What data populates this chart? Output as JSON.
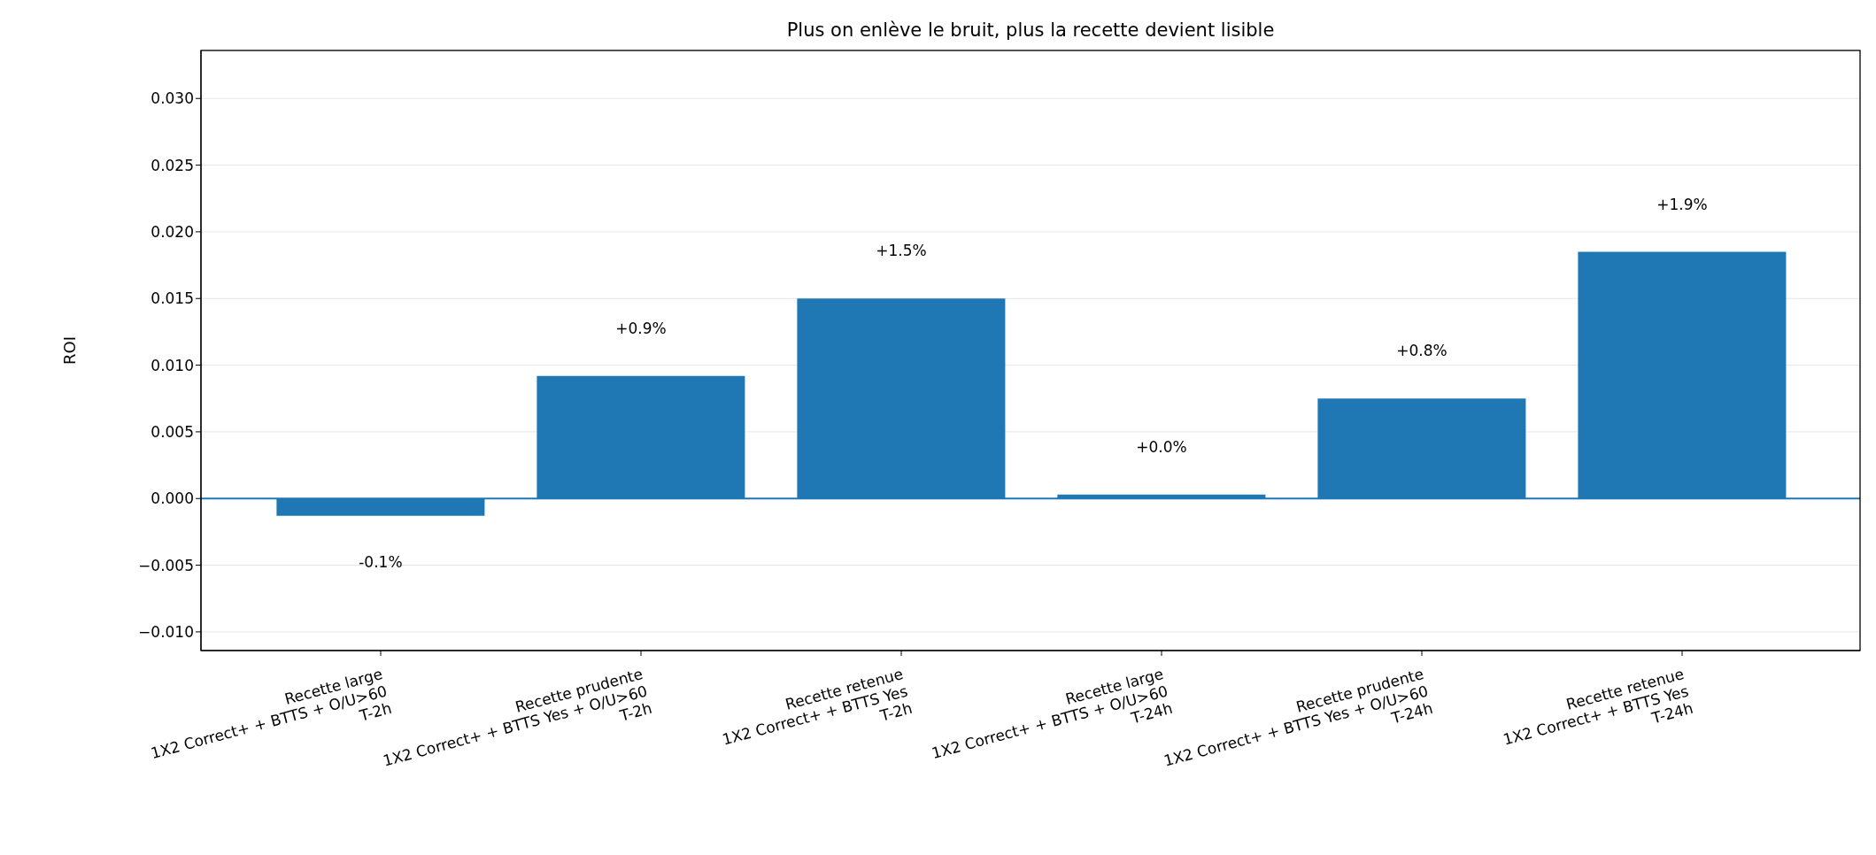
{
  "chart_data": {
    "type": "bar",
    "title": "Plus on enlève le bruit, plus la recette devient lisible",
    "ylabel": "ROI",
    "categories": [
      "Recette large\n1X2 Correct+ + BTTS + O/U>60\nT-2h",
      "Recette prudente\n1X2 Correct+ + BTTS Yes + O/U>60\nT-2h",
      "Recette retenue\n1X2 Correct+ + BTTS Yes\nT-2h",
      "Recette large\n1X2 Correct+ + BTTS + O/U>60\nT-24h",
      "Recette prudente\n1X2 Correct+ + BTTS Yes + O/U>60\nT-24h",
      "Recette retenue\n1X2 Correct+ + BTTS Yes\nT-24h"
    ],
    "values": [
      -0.0013,
      0.0092,
      0.015,
      0.0003,
      0.0075,
      0.0185
    ],
    "value_labels": [
      "-0.1%",
      "+0.9%",
      "+1.5%",
      "+0.0%",
      "+0.8%",
      "+1.9%"
    ],
    "color": "#1f77b4",
    "ylim": [
      -0.0114,
      0.0336
    ],
    "yticks": [
      {
        "value": -0.01,
        "label": "−0.010"
      },
      {
        "value": -0.005,
        "label": "−0.005"
      },
      {
        "value": 0,
        "label": "0.000"
      },
      {
        "value": 0.005,
        "label": "0.005"
      },
      {
        "value": 0.01,
        "label": "0.010"
      },
      {
        "value": 0.015,
        "label": "0.015"
      },
      {
        "value": 0.02,
        "label": "0.020"
      },
      {
        "value": 0.025,
        "label": "0.025"
      },
      {
        "value": 0.03,
        "label": "0.030"
      }
    ],
    "ref_lines": [
      {
        "axis": "y",
        "value": 0,
        "color": "#1f77b4"
      }
    ],
    "grid": "y"
  }
}
